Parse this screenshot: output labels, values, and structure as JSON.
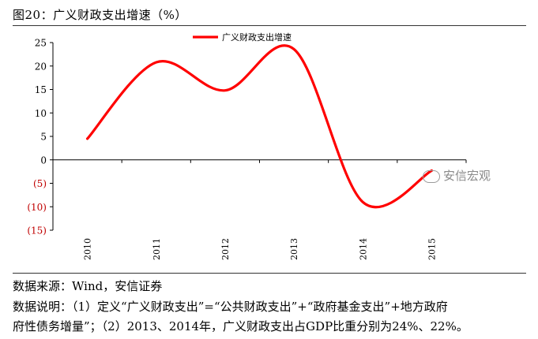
{
  "figure": {
    "title": "图20：广义财政支出增速（%）",
    "source": "数据来源：Wind，安信证券",
    "note_line1": "数据说明：（1）定义“广义财政支出”=“公共财政支出”+“政府基金支出”+地方政府",
    "note_line2": "府性债务增量”；（2）2013、2014年，广义财政支出占GDP比重分别为24%、22%。",
    "watermark": "安信宏观"
  },
  "chart_data": {
    "type": "line",
    "title": "广义财政支出增速（%）",
    "xlabel": "",
    "ylabel": "",
    "categories": [
      "2010",
      "2011",
      "2012",
      "2013",
      "2014",
      "2015"
    ],
    "series": [
      {
        "name": "广义财政支出增速",
        "color": "#ff0000",
        "values": [
          4.5,
          20.8,
          14.8,
          23.6,
          -9.0,
          -2.3
        ]
      }
    ],
    "ylim": [
      -15,
      25
    ],
    "yticks": [
      -15,
      -10,
      -5,
      0,
      5,
      10,
      15,
      20,
      25
    ],
    "ytick_labels": [
      "(15)",
      "(10)",
      "(5)",
      "0",
      "5",
      "10",
      "15",
      "20",
      "25"
    ],
    "negative_tick_color": "#c00000",
    "grid": false,
    "legend": "top-center"
  }
}
